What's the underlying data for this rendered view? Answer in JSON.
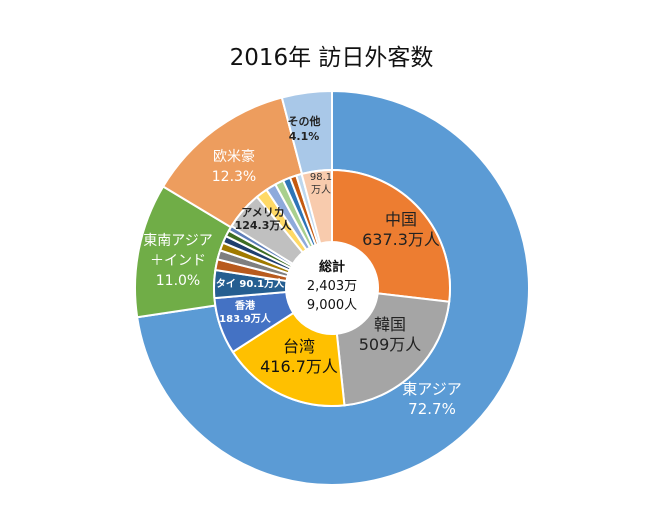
{
  "title": "2016年 訪日外客数",
  "center_label": [
    "総計",
    "2,403万",
    "9,000人"
  ],
  "chart_data": [
    {
      "type": "pie",
      "variant": "donut",
      "ring": "outer",
      "title": "2016年 訪日外客数",
      "series": [
        {
          "name": "東アジア",
          "value": 72.7,
          "label": [
            "東アジア",
            "72.7%"
          ],
          "color": "#5b9bd5"
        },
        {
          "name": "東南アジア＋インド",
          "value": 11.0,
          "label": [
            "東南アジア",
            "＋インド",
            "11.0%"
          ],
          "color": "#70ad47"
        },
        {
          "name": "欧米豪",
          "value": 12.3,
          "label": [
            "欧米豪",
            "12.3%"
          ],
          "color": "#ed9d5e"
        },
        {
          "name": "その他",
          "value": 4.1,
          "label": [
            "その他",
            "4.1%"
          ],
          "color": "#a9c8e8"
        }
      ]
    },
    {
      "type": "pie",
      "variant": "donut",
      "ring": "inner",
      "unit": "万人",
      "series": [
        {
          "name": "中国",
          "value": 637.3,
          "label": [
            "中国",
            "637.3万人"
          ],
          "color": "#ed7d31"
        },
        {
          "name": "韓国",
          "value": 509,
          "label": [
            "韓国",
            "509万人"
          ],
          "color": "#a5a5a5"
        },
        {
          "name": "台湾",
          "value": 416.7,
          "label": [
            "台湾",
            "416.7万人"
          ],
          "color": "#ffc000"
        },
        {
          "name": "香港",
          "value": 183.9,
          "label": [
            "香港",
            "183.9万人"
          ],
          "color": "#4472c4"
        },
        {
          "name": "タイ",
          "value": 90.1,
          "label": [
            "タイ 90.1万人"
          ],
          "color": "#255e91"
        },
        {
          "name": "",
          "value": 35,
          "label": [],
          "color": "#b85a1e"
        },
        {
          "name": "",
          "value": 30,
          "label": [],
          "color": "#7f7f7f"
        },
        {
          "name": "",
          "value": 26,
          "label": [],
          "color": "#a07a00"
        },
        {
          "name": "",
          "value": 23,
          "label": [],
          "color": "#1f3f6e"
        },
        {
          "name": "",
          "value": 20,
          "label": [],
          "color": "#3d6d22"
        },
        {
          "name": "",
          "value": 17,
          "label": [],
          "color": "#5e7eb8"
        },
        {
          "name": "アメリカ",
          "value": 124.3,
          "label": [
            "アメリカ",
            "124.3万人"
          ],
          "color": "#c0c0c0"
        },
        {
          "name": "",
          "value": 38,
          "label": [],
          "color": "#ffd966"
        },
        {
          "name": "",
          "value": 33,
          "label": [],
          "color": "#8eaadb"
        },
        {
          "name": "",
          "value": 28,
          "label": [],
          "color": "#a9d08e"
        },
        {
          "name": "",
          "value": 24,
          "label": [],
          "color": "#2e75b6"
        },
        {
          "name": "",
          "value": 21,
          "label": [],
          "color": "#c55a11"
        },
        {
          "name": "",
          "value": 18,
          "label": [],
          "color": "#bdd7ee"
        },
        {
          "name": "",
          "value": 98.1,
          "label": [
            "98.1",
            "万人"
          ],
          "color": "#f8cbad"
        }
      ]
    }
  ]
}
